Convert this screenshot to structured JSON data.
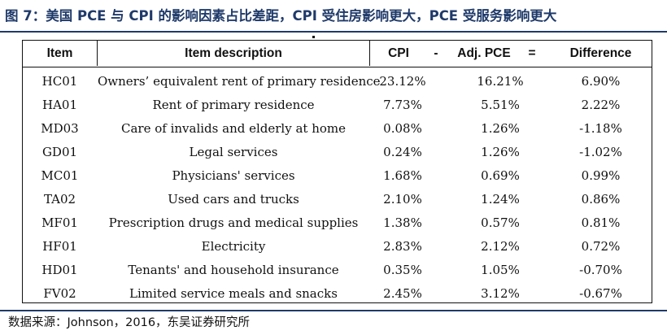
{
  "figure": {
    "title": "图 7：美国 PCE 与 CPI 的影响因素占比差距，CPI 受住房影响更大，PCE 受服务影响更大",
    "source": "数据来源：Johnson，2016，东吴证券研究所"
  },
  "table": {
    "headers": {
      "item": "Item",
      "description": "Item description",
      "cpi": "CPI",
      "minus": "-",
      "pce": "Adj. PCE",
      "equals": "=",
      "difference": "Difference"
    },
    "rows": [
      {
        "item": "HC01",
        "description": "Owners’ equivalent rent of primary residence",
        "cpi": "23.12%",
        "pce": "16.21%",
        "difference": "6.90%"
      },
      {
        "item": "HA01",
        "description": "Rent of primary residence",
        "cpi": "7.73%",
        "pce": "5.51%",
        "difference": "2.22%"
      },
      {
        "item": "MD03",
        "description": "Care of invalids and elderly at home",
        "cpi": "0.08%",
        "pce": "1.26%",
        "difference": "-1.18%"
      },
      {
        "item": "GD01",
        "description": "Legal services",
        "cpi": "0.24%",
        "pce": "1.26%",
        "difference": "-1.02%"
      },
      {
        "item": "MC01",
        "description": "Physicians' services",
        "cpi": "1.68%",
        "pce": "0.69%",
        "difference": "0.99%"
      },
      {
        "item": "TA02",
        "description": "Used cars and trucks",
        "cpi": "2.10%",
        "pce": "1.24%",
        "difference": "0.86%"
      },
      {
        "item": "MF01",
        "description": "Prescription drugs and medical supplies",
        "cpi": "1.38%",
        "pce": "0.57%",
        "difference": "0.81%"
      },
      {
        "item": "HF01",
        "description": "Electricity",
        "cpi": "2.83%",
        "pce": "2.12%",
        "difference": "0.72%"
      },
      {
        "item": "HD01",
        "description": "Tenants' and household insurance",
        "cpi": "0.35%",
        "pce": "1.05%",
        "difference": "-0.70%"
      },
      {
        "item": "FV02",
        "description": "Limited service meals and snacks",
        "cpi": "2.45%",
        "pce": "3.12%",
        "difference": "-0.67%"
      }
    ]
  }
}
